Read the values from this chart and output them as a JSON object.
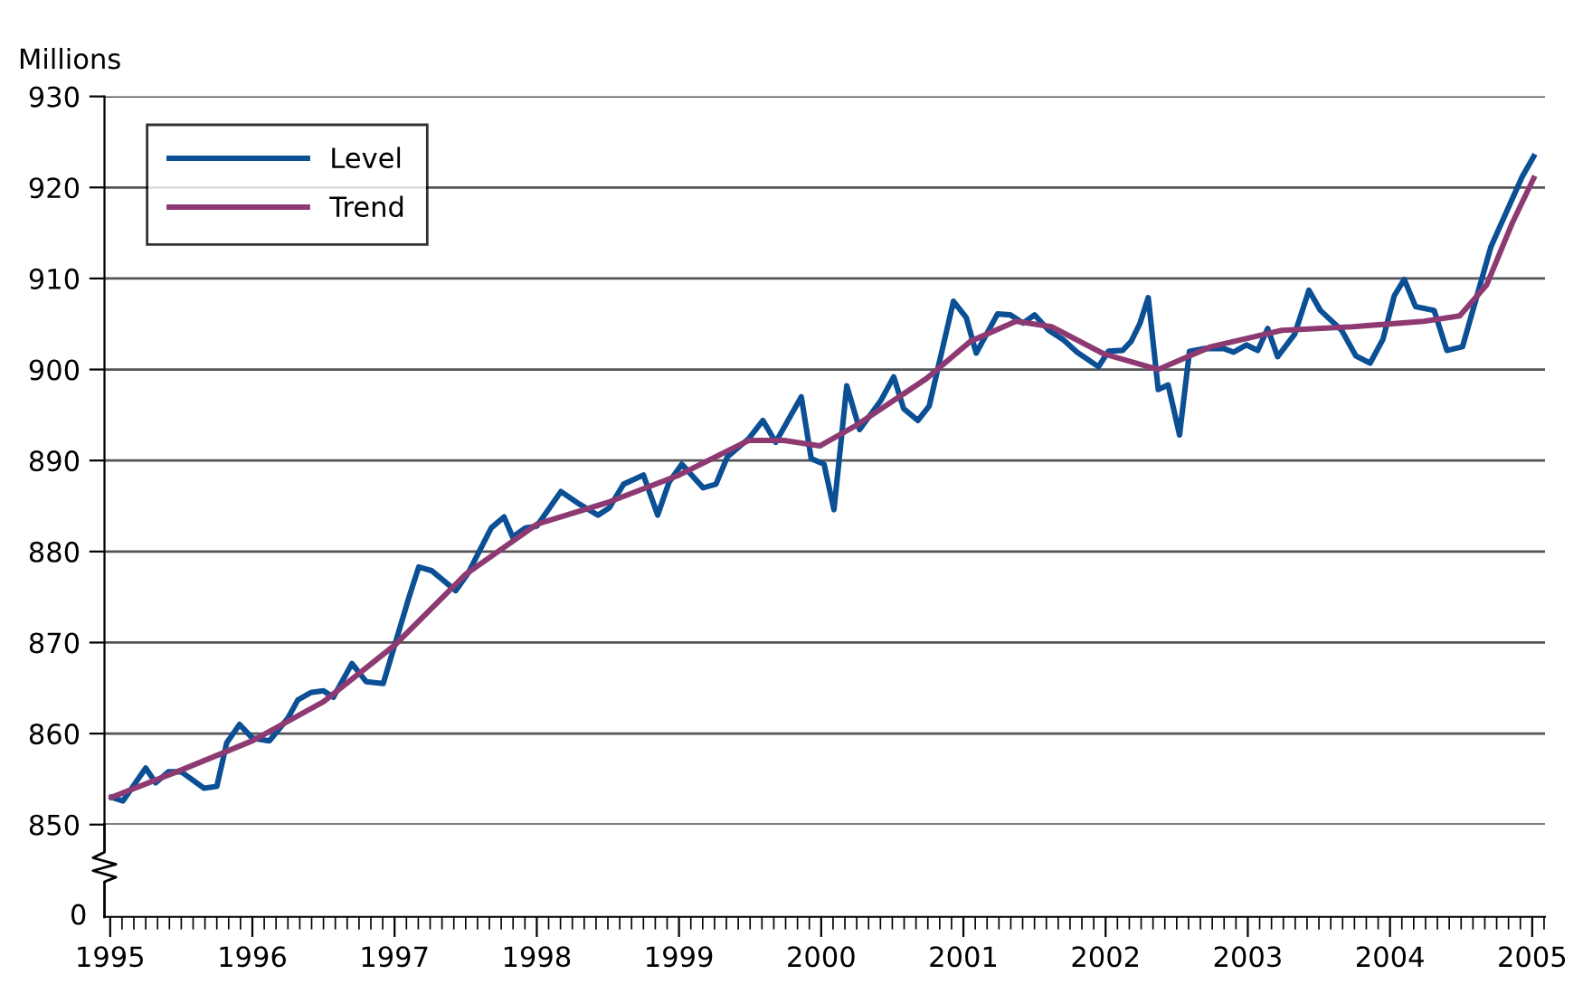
{
  "chart_data": {
    "type": "line",
    "ylabel": "Millions",
    "xlim": [
      1994.96,
      2005.09
    ],
    "xticks": [
      1995,
      1996,
      1997,
      1998,
      1999,
      2000,
      2001,
      2002,
      2003,
      2004,
      2005
    ],
    "ylim": [
      850,
      930
    ],
    "yticks": [
      850,
      860,
      870,
      880,
      890,
      900,
      910,
      920,
      930
    ],
    "annotations": [
      "0"
    ],
    "grid": "y",
    "legend": "top left",
    "marker": "none",
    "line_style": "solid",
    "series": [
      {
        "name": "Level",
        "color": "#0b4f94",
        "x": [
          1995.01,
          1995.09,
          1995.25,
          1995.32,
          1995.41,
          1995.5,
          1995.66,
          1995.75,
          1995.82,
          1995.91,
          1996.0,
          1996.12,
          1996.25,
          1996.32,
          1996.41,
          1996.5,
          1996.57,
          1996.7,
          1996.8,
          1996.92,
          1997.1,
          1997.17,
          1997.26,
          1997.43,
          1997.52,
          1997.68,
          1997.77,
          1997.83,
          1997.92,
          1998.0,
          1998.17,
          1998.3,
          1998.43,
          1998.51,
          1998.61,
          1998.75,
          1998.85,
          1998.93,
          1999.02,
          1999.17,
          1999.26,
          1999.34,
          1999.49,
          1999.59,
          1999.68,
          1999.86,
          1999.93,
          2000.02,
          2000.09,
          2000.18,
          2000.27,
          2000.42,
          2000.51,
          2000.58,
          2000.68,
          2000.76,
          2000.93,
          2001.02,
          2001.09,
          2001.24,
          2001.33,
          2001.42,
          2001.5,
          2001.6,
          2001.7,
          2001.8,
          2001.95,
          2002.02,
          2002.12,
          2002.18,
          2002.24,
          2002.3,
          2002.37,
          2002.44,
          2002.52,
          2002.59,
          2002.69,
          2002.83,
          2002.9,
          2002.99,
          2003.07,
          2003.14,
          2003.21,
          2003.33,
          2003.43,
          2003.51,
          2003.66,
          2003.76,
          2003.86,
          2003.95,
          2004.03,
          2004.1,
          2004.18,
          2004.31,
          2004.4,
          2004.51,
          2004.71,
          2004.93,
          2005.01
        ],
        "values": [
          853.0,
          852.6,
          856.2,
          854.6,
          855.8,
          855.8,
          854.0,
          854.2,
          859.0,
          861.0,
          859.5,
          859.2,
          861.7,
          863.7,
          864.5,
          864.7,
          864.0,
          867.7,
          865.7,
          865.5,
          874.9,
          878.3,
          877.9,
          875.7,
          877.7,
          882.6,
          883.8,
          881.6,
          882.6,
          882.8,
          886.6,
          885.2,
          884.0,
          884.8,
          887.4,
          888.4,
          884.0,
          887.6,
          889.6,
          887.0,
          887.4,
          890.4,
          892.4,
          894.4,
          892.0,
          897.0,
          890.2,
          889.6,
          884.6,
          898.2,
          893.4,
          896.6,
          899.2,
          895.7,
          894.4,
          896.0,
          907.5,
          905.7,
          901.8,
          906.1,
          906.0,
          905.1,
          906.0,
          904.3,
          903.3,
          901.9,
          900.3,
          902.0,
          902.1,
          903.1,
          905.0,
          907.9,
          897.8,
          898.3,
          892.8,
          902.0,
          902.3,
          902.3,
          901.9,
          902.7,
          902.1,
          904.5,
          901.4,
          903.9,
          908.7,
          906.5,
          904.3,
          901.5,
          900.7,
          903.3,
          908.1,
          909.9,
          906.9,
          906.5,
          902.1,
          902.5,
          913.5,
          921.2,
          923.4
        ]
      },
      {
        "name": "Trend",
        "color": "#8e3a72",
        "x": [
          1995.01,
          1995.5,
          1996.0,
          1996.5,
          1997.0,
          1997.5,
          1998.0,
          1998.5,
          1999.0,
          1999.49,
          1999.74,
          1999.99,
          2000.24,
          2000.74,
          2001.05,
          2001.37,
          2001.62,
          2001.99,
          2002.37,
          2002.74,
          2003.24,
          2003.74,
          2004.24,
          2004.49,
          2004.68,
          2004.86,
          2005.01
        ],
        "values": [
          853.0,
          856.0,
          859.2,
          863.5,
          869.7,
          877.5,
          883.0,
          885.4,
          888.4,
          892.2,
          892.2,
          891.6,
          893.8,
          899.0,
          903.1,
          905.3,
          904.7,
          901.7,
          900.0,
          902.5,
          904.3,
          904.7,
          905.3,
          905.9,
          909.3,
          916.1,
          921.0
        ]
      }
    ]
  }
}
